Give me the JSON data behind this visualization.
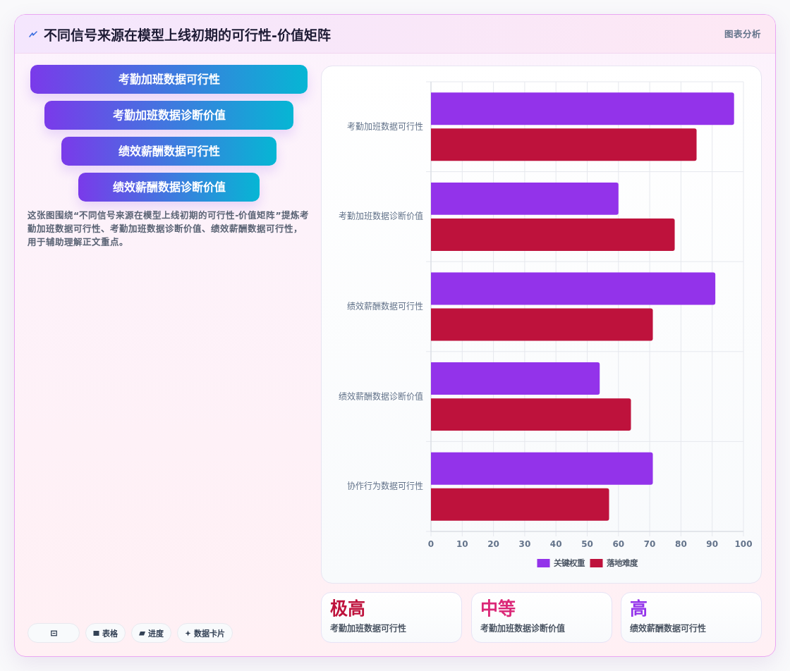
{
  "chart_data": [
    {
      "type": "bar",
      "orientation": "horizontal",
      "title": "不同信号来源在模型上线初期的可行性-价值矩阵",
      "annotations": [
        "图表分析"
      ],
      "categories": [
        "考勤加班数据可行性",
        "考勤加班数据诊断价值",
        "绩效薪酬数据可行性",
        "绩效薪酬数据诊断价值",
        "协作行为数据可行性"
      ],
      "series": [
        {
          "name": "关键权重",
          "color": "#9333ea",
          "values": [
            97,
            60,
            91,
            54,
            71
          ]
        },
        {
          "name": "落地难度",
          "color": "#be123c",
          "values": [
            85,
            78,
            71,
            64,
            57
          ]
        }
      ],
      "xlim": [
        0,
        100
      ],
      "xticks": [
        0,
        10,
        20,
        30,
        40,
        50,
        60,
        70,
        80,
        90,
        100
      ],
      "grid": true,
      "legend": "bottom"
    },
    {
      "type": "other",
      "annotations": [
        "考勤加班数据可行性",
        "考勤加班数据诊断价值",
        "绩效薪酬数据可行性",
        "绩效薪酬数据诊断价值",
        "这张图围绕“不同信号来源在模型上线初期的可行性-价值矩阵”提炼考勤加班数据可行性、考勤加班数据诊断价值、绩效薪酬数据可行性，用于辅助理解正文重点。",
        "表格",
        "进度",
        "数据卡片"
      ]
    },
    {
      "type": "other",
      "annotations": [
        "极高",
        "考勤加班数据可行性",
        "中等",
        "考勤加班数据诊断价值",
        "高",
        "绩效薪酬数据可行性"
      ]
    }
  ]
}
